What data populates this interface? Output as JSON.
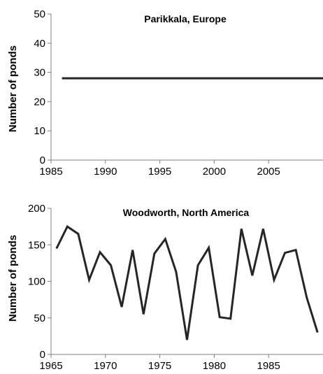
{
  "chart_data": [
    {
      "type": "line",
      "title": "Parikkala, Europe",
      "xlabel": "",
      "ylabel": "Number of ponds",
      "xlim": [
        1985,
        2010
      ],
      "ylim": [
        0,
        50
      ],
      "xticks": [
        1985,
        1990,
        1995,
        2000,
        2005
      ],
      "yticks": [
        0,
        10,
        20,
        30,
        40,
        50
      ],
      "grid": false,
      "series": [
        {
          "x": [
            1986,
            2010
          ],
          "y": [
            28,
            28
          ],
          "color": "#262626"
        }
      ]
    },
    {
      "type": "line",
      "title": "Woodworth, North America",
      "xlabel": "",
      "ylabel": "Number of ponds",
      "xlim": [
        1965,
        1990
      ],
      "ylim": [
        0,
        200
      ],
      "xticks": [
        1965,
        1970,
        1975,
        1980,
        1985
      ],
      "yticks": [
        0,
        50,
        100,
        150,
        200
      ],
      "grid": false,
      "series": [
        {
          "x": [
            1965.5,
            1966.5,
            1967.5,
            1968.5,
            1969.5,
            1970.5,
            1971.5,
            1972.5,
            1973.5,
            1974.5,
            1975.5,
            1976.5,
            1977.5,
            1978.5,
            1979.5,
            1980.5,
            1981.5,
            1982.5,
            1983.5,
            1984.5,
            1985.5,
            1986.5,
            1987.5,
            1988.5,
            1989.5
          ],
          "y": [
            145,
            175,
            165,
            102,
            140,
            122,
            65,
            143,
            55,
            138,
            158,
            113,
            20,
            122,
            146,
            51,
            49,
            172,
            108,
            172,
            102,
            139,
            143,
            78,
            30
          ],
          "color": "#262626"
        }
      ]
    }
  ]
}
